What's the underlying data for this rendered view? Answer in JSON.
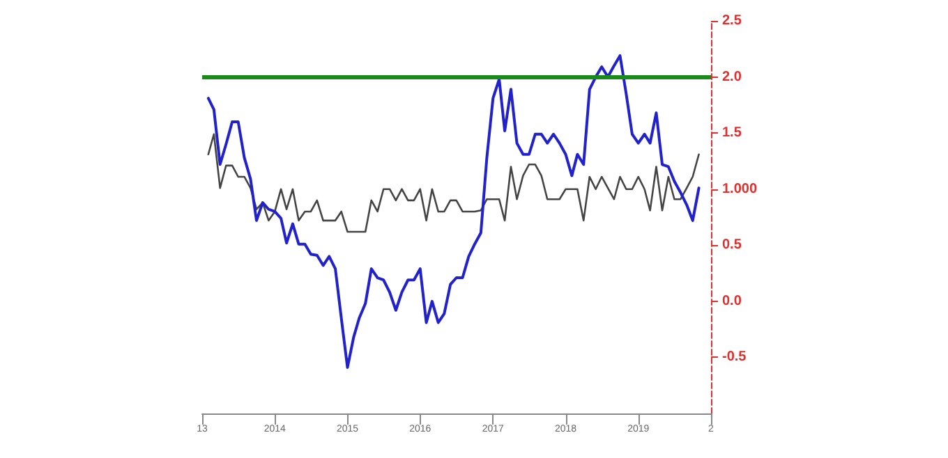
{
  "chart_data": {
    "type": "line",
    "x": [
      "2013-02",
      "2013-03",
      "2013-04",
      "2013-05",
      "2013-06",
      "2013-07",
      "2013-08",
      "2013-09",
      "2013-10",
      "2013-11",
      "2013-12",
      "2014-01",
      "2014-02",
      "2014-03",
      "2014-04",
      "2014-05",
      "2014-06",
      "2014-07",
      "2014-08",
      "2014-09",
      "2014-10",
      "2014-11",
      "2014-12",
      "2015-01",
      "2015-02",
      "2015-03",
      "2015-04",
      "2015-05",
      "2015-06",
      "2015-07",
      "2015-08",
      "2015-09",
      "2015-10",
      "2015-11",
      "2015-12",
      "2016-01",
      "2016-02",
      "2016-03",
      "2016-04",
      "2016-05",
      "2016-06",
      "2016-07",
      "2016-08",
      "2016-09",
      "2016-10",
      "2016-11",
      "2016-12",
      "2017-01",
      "2017-02",
      "2017-03",
      "2017-04",
      "2017-05",
      "2017-06",
      "2017-07",
      "2017-08",
      "2017-09",
      "2017-10",
      "2017-11",
      "2017-12",
      "2018-01",
      "2018-02",
      "2018-03",
      "2018-04",
      "2018-05",
      "2018-06",
      "2018-07",
      "2018-08",
      "2018-09",
      "2018-10",
      "2018-11",
      "2018-12",
      "2019-01",
      "2019-02",
      "2019-03",
      "2019-04",
      "2019-05",
      "2019-06",
      "2019-07",
      "2019-08",
      "2019-09",
      "2019-10",
      "2019-11"
    ],
    "series": [
      {
        "color": "#444444",
        "values": [
          1.31,
          1.49,
          1.01,
          1.21,
          1.21,
          1.11,
          1.11,
          1.01,
          0.82,
          0.88,
          0.72,
          0.8,
          1.0,
          0.82,
          1.0,
          0.72,
          0.8,
          0.8,
          0.9,
          0.72,
          0.72,
          0.72,
          0.8,
          0.62,
          0.62,
          0.62,
          0.62,
          0.9,
          0.8,
          1.0,
          1.0,
          0.9,
          1.0,
          0.9,
          0.9,
          1.0,
          0.72,
          1.0,
          0.8,
          0.8,
          0.9,
          0.9,
          0.8,
          0.8,
          0.8,
          0.81,
          0.91,
          0.91,
          0.91,
          0.72,
          1.2,
          0.91,
          1.12,
          1.22,
          1.22,
          1.12,
          0.91,
          0.91,
          0.91,
          1.0,
          1.0,
          1.0,
          0.72,
          1.11,
          1.0,
          1.11,
          1.01,
          0.91,
          1.11,
          1.0,
          1.0,
          1.11,
          1.0,
          0.81,
          1.2,
          0.81,
          1.11,
          0.91,
          0.91,
          1.01,
          1.11,
          1.31
        ]
      },
      {
        "color": "#2222cc",
        "values": [
          1.81,
          1.71,
          1.22,
          1.4,
          1.6,
          1.6,
          1.28,
          1.09,
          0.72,
          0.88,
          0.82,
          0.8,
          0.74,
          0.52,
          0.69,
          0.51,
          0.51,
          0.42,
          0.41,
          0.32,
          0.4,
          0.29,
          -0.15,
          -0.59,
          -0.32,
          -0.15,
          -0.02,
          0.29,
          0.21,
          0.19,
          0.08,
          -0.08,
          0.08,
          0.19,
          0.19,
          0.29,
          -0.19,
          0.0,
          -0.19,
          -0.11,
          0.15,
          0.21,
          0.21,
          0.4,
          0.51,
          0.61,
          1.28,
          1.81,
          1.98,
          1.52,
          1.89,
          1.41,
          1.31,
          1.31,
          1.49,
          1.49,
          1.41,
          1.49,
          1.41,
          1.31,
          1.12,
          1.31,
          1.22,
          1.89,
          2.0,
          2.09,
          2.0,
          2.1,
          2.19,
          1.85,
          1.49,
          1.41,
          1.49,
          1.41,
          1.68,
          1.22,
          1.2,
          1.07,
          0.97,
          0.86,
          0.72,
          1.01
        ]
      }
    ],
    "xlim": [
      "2013-01",
      "2020-01"
    ],
    "xticks": [
      {
        "value": "2013-01",
        "label": "13"
      },
      {
        "value": "2014-01",
        "label": "2014"
      },
      {
        "value": "2015-01",
        "label": "2015"
      },
      {
        "value": "2016-01",
        "label": "2016"
      },
      {
        "value": "2017-01",
        "label": "2017"
      },
      {
        "value": "2018-01",
        "label": "2018"
      },
      {
        "value": "2019-01",
        "label": "2019"
      },
      {
        "value": "2020-01",
        "label": "2"
      }
    ],
    "ylim": [
      -1,
      2.5
    ],
    "yticks": [
      {
        "value": -0.5,
        "label": "-0.5"
      },
      {
        "value": 0,
        "label": "0.0"
      },
      {
        "value": 0.5,
        "label": "0.5"
      },
      {
        "value": 1,
        "label": "1.000"
      },
      {
        "value": 1.5,
        "label": "1.5"
      },
      {
        "value": 2,
        "label": "2.0"
      },
      {
        "value": 2.5,
        "label": "2.5"
      }
    ],
    "ref_lines": [
      {
        "axis": "y",
        "value": 2,
        "color": "#1a8a1a"
      }
    ],
    "grid": false,
    "marker": "none",
    "line_style": "solid"
  }
}
